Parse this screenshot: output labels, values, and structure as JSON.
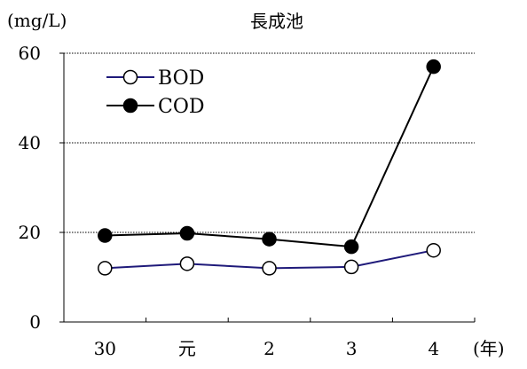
{
  "chart_data": {
    "type": "line",
    "title": "長成池",
    "ylabel": "(mg/L)",
    "xlabel": "(年)",
    "categories": [
      "30",
      "元",
      "2",
      "3",
      "4"
    ],
    "ylim": [
      0,
      60
    ],
    "yticks": [
      0,
      20,
      40,
      60
    ],
    "grid": {
      "y": true,
      "style": "dotted",
      "color": "#000000"
    },
    "legend_position": "top-left",
    "series": [
      {
        "name": "BOD",
        "values": [
          12,
          13,
          12,
          12.3,
          16
        ],
        "line_color": "#1f1a7a",
        "marker": "open-circle"
      },
      {
        "name": "COD",
        "values": [
          19.3,
          19.8,
          18.5,
          16.8,
          57
        ],
        "line_color": "#000000",
        "marker": "filled-circle"
      }
    ]
  }
}
